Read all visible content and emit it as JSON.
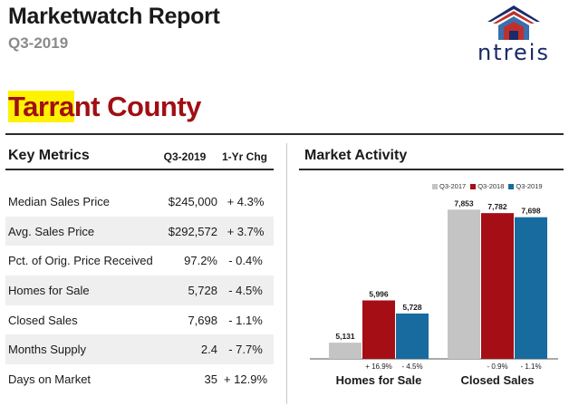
{
  "header": {
    "title": "Marketwatch Report",
    "period": "Q3-2019",
    "logo_text": "ntreis",
    "county_highlight": "Tarra",
    "county_rest": "nt County"
  },
  "key_metrics": {
    "title": "Key Metrics",
    "col_current": "Q3-2019",
    "col_change": "1-Yr Chg",
    "rows": [
      {
        "label": "Median Sales Price",
        "value": "$245,000",
        "change": "+ 4.3%"
      },
      {
        "label": "Avg. Sales Price",
        "value": "$292,572",
        "change": "+ 3.7%"
      },
      {
        "label": "Pct. of Orig. Price Received",
        "value": "97.2%",
        "change": "- 0.4%"
      },
      {
        "label": "Homes for Sale",
        "value": "5,728",
        "change": "- 4.5%"
      },
      {
        "label": "Closed Sales",
        "value": "7,698",
        "change": "- 1.1%"
      },
      {
        "label": "Months Supply",
        "value": "2.4",
        "change": "- 7.7%"
      },
      {
        "label": "Days on Market",
        "value": "35",
        "change": "+ 12.9%"
      }
    ]
  },
  "market_activity": {
    "title": "Market Activity"
  },
  "chart_data": {
    "type": "bar",
    "title": "Market Activity",
    "categories": [
      "Homes for Sale",
      "Closed Sales"
    ],
    "series": [
      {
        "name": "Q3-2017",
        "color": "#c4c4c4",
        "values": [
          5131,
          7853
        ]
      },
      {
        "name": "Q3-2018",
        "color": "#a50e15",
        "values": [
          5996,
          7782
        ]
      },
      {
        "name": "Q3-2019",
        "color": "#186b9e",
        "values": [
          5728,
          7698
        ]
      }
    ],
    "data_labels": [
      [
        "5,131",
        "7,853"
      ],
      [
        "5,996",
        "7,782"
      ],
      [
        "5,728",
        "7,698"
      ]
    ],
    "change_labels": [
      [
        "+ 16.9%",
        "- 4.5%"
      ],
      [
        "- 0.9%",
        "- 1.1%"
      ]
    ],
    "ylim": [
      4800,
      8100
    ],
    "legend": "top-right",
    "grid": false
  }
}
